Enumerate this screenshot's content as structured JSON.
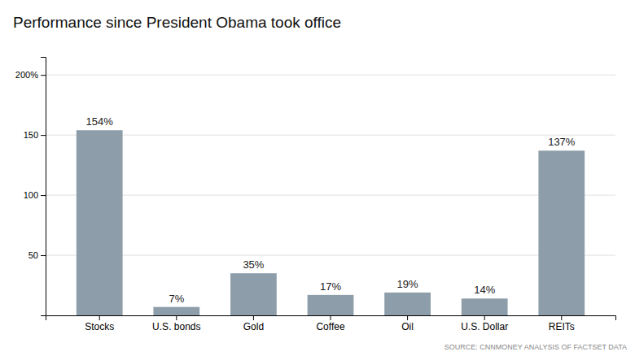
{
  "chart_data": {
    "type": "bar",
    "title": "Performance since President Obama took office",
    "categories": [
      "Stocks",
      "U.S. bonds",
      "Gold",
      "Coffee",
      "Oil",
      "U.S. Dollar",
      "REITs"
    ],
    "values": [
      154,
      7,
      35,
      17,
      19,
      14,
      137
    ],
    "value_labels": [
      "154%",
      "7%",
      "35%",
      "17%",
      "19%",
      "14%",
      "137%"
    ],
    "data_labels": true,
    "color": "#8d9eaa",
    "ylim": [
      0,
      215
    ],
    "yticks": [
      50,
      100,
      150,
      {
        "value": 200,
        "label": "200%"
      }
    ],
    "grid": true,
    "annotations": [
      "SOURCE: CNNMONEY ANALYSIS OF FACTSET DATA"
    ]
  }
}
